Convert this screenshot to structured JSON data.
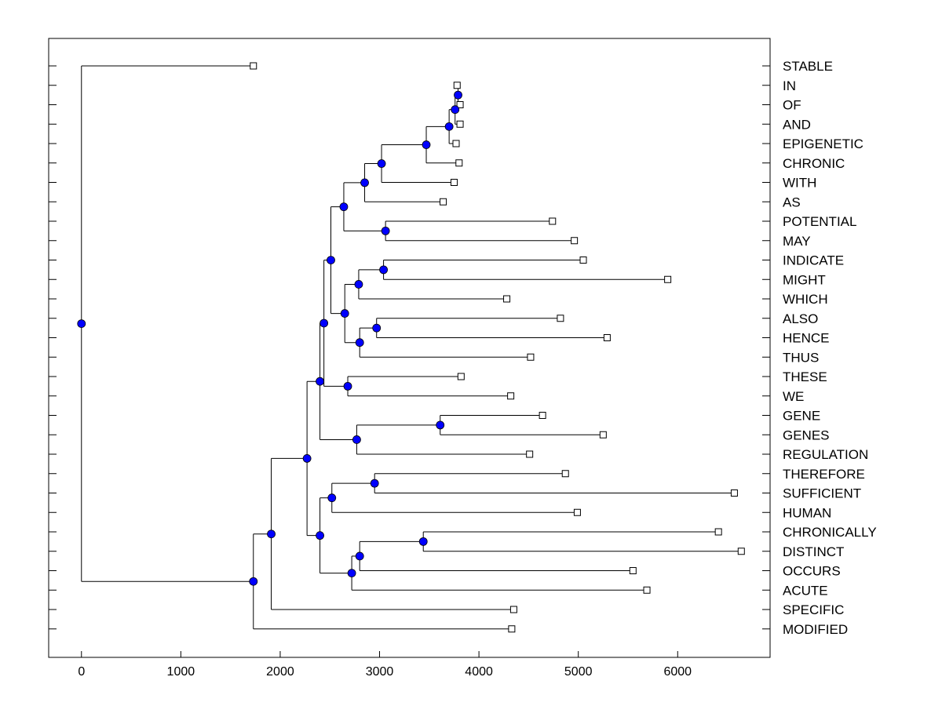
{
  "chart_data": {
    "type": "dendrogram",
    "title": "",
    "xlabel": "",
    "ylabel": "",
    "xlim": [
      -330,
      6930
    ],
    "xticks": [
      0,
      1000,
      2000,
      3000,
      4000,
      5000,
      6000
    ],
    "colors": {
      "node": "#0000ff",
      "line": "#000000",
      "leaf": "#ffffff"
    },
    "leaves": [
      {
        "label": "STABLE",
        "x": 1730
      },
      {
        "label": "IN",
        "x": 3780
      },
      {
        "label": "OF",
        "x": 3810
      },
      {
        "label": "AND",
        "x": 3810
      },
      {
        "label": "EPIGENETIC",
        "x": 3770
      },
      {
        "label": "CHRONIC",
        "x": 3800
      },
      {
        "label": "WITH",
        "x": 3750
      },
      {
        "label": "AS",
        "x": 3640
      },
      {
        "label": "POTENTIAL",
        "x": 4740
      },
      {
        "label": "MAY",
        "x": 4960
      },
      {
        "label": "INDICATE",
        "x": 5050
      },
      {
        "label": "MIGHT",
        "x": 5900
      },
      {
        "label": "WHICH",
        "x": 4280
      },
      {
        "label": "ALSO",
        "x": 4820
      },
      {
        "label": "HENCE",
        "x": 5290
      },
      {
        "label": "THUS",
        "x": 4520
      },
      {
        "label": "THESE",
        "x": 3820
      },
      {
        "label": "WE",
        "x": 4320
      },
      {
        "label": "GENE",
        "x": 4640
      },
      {
        "label": "GENES",
        "x": 5250
      },
      {
        "label": "REGULATION",
        "x": 4510
      },
      {
        "label": "THEREFORE",
        "x": 4870
      },
      {
        "label": "SUFFICIENT",
        "x": 6570
      },
      {
        "label": "HUMAN",
        "x": 4990
      },
      {
        "label": "CHRONICALLY",
        "x": 6410
      },
      {
        "label": "DISTINCT",
        "x": 6640
      },
      {
        "label": "OCCURS",
        "x": 5550
      },
      {
        "label": "ACUTE",
        "x": 5690
      },
      {
        "label": "SPECIFIC",
        "x": 4350
      },
      {
        "label": "MODIFIED",
        "x": 4330
      }
    ],
    "merges": [
      {
        "id": "a",
        "x": 3790,
        "children": [
          "IN",
          "OF"
        ]
      },
      {
        "id": "b",
        "x": 3760,
        "children": [
          "a",
          "AND"
        ]
      },
      {
        "id": "c",
        "x": 3700,
        "children": [
          "b",
          "EPIGENETIC"
        ]
      },
      {
        "id": "d",
        "x": 3470,
        "children": [
          "c",
          "CHRONIC"
        ]
      },
      {
        "id": "e",
        "x": 3020,
        "children": [
          "d",
          "WITH"
        ]
      },
      {
        "id": "f",
        "x": 2850,
        "children": [
          "e",
          "AS"
        ]
      },
      {
        "id": "g",
        "x": 3060,
        "children": [
          "POTENTIAL",
          "MAY"
        ]
      },
      {
        "id": "h",
        "x": 2640,
        "children": [
          "f",
          "g"
        ]
      },
      {
        "id": "i",
        "x": 3040,
        "children": [
          "INDICATE",
          "MIGHT"
        ]
      },
      {
        "id": "j",
        "x": 2790,
        "children": [
          "i",
          "WHICH"
        ]
      },
      {
        "id": "k",
        "x": 2970,
        "children": [
          "ALSO",
          "HENCE"
        ]
      },
      {
        "id": "l",
        "x": 2800,
        "children": [
          "k",
          "THUS"
        ]
      },
      {
        "id": "m",
        "x": 2650,
        "children": [
          "j",
          "l"
        ]
      },
      {
        "id": "n",
        "x": 2510,
        "children": [
          "h",
          "m"
        ]
      },
      {
        "id": "o",
        "x": 2680,
        "children": [
          "THESE",
          "WE"
        ]
      },
      {
        "id": "p",
        "x": 2440,
        "children": [
          "n",
          "o"
        ]
      },
      {
        "id": "q",
        "x": 3610,
        "children": [
          "GENE",
          "GENES"
        ]
      },
      {
        "id": "r",
        "x": 2770,
        "children": [
          "q",
          "REGULATION"
        ]
      },
      {
        "id": "s",
        "x": 2400,
        "children": [
          "p",
          "r"
        ]
      },
      {
        "id": "t",
        "x": 2950,
        "children": [
          "THEREFORE",
          "SUFFICIENT"
        ]
      },
      {
        "id": "u",
        "x": 2520,
        "children": [
          "t",
          "HUMAN"
        ]
      },
      {
        "id": "v",
        "x": 3440,
        "children": [
          "CHRONICALLY",
          "DISTINCT"
        ]
      },
      {
        "id": "w",
        "x": 2800,
        "children": [
          "v",
          "OCCURS"
        ]
      },
      {
        "id": "x",
        "x": 2720,
        "children": [
          "w",
          "ACUTE"
        ]
      },
      {
        "id": "y",
        "x": 2400,
        "children": [
          "u",
          "x"
        ]
      },
      {
        "id": "z",
        "x": 2270,
        "children": [
          "s",
          "y"
        ]
      },
      {
        "id": "aa",
        "x": 1910,
        "children": [
          "z",
          "SPECIFIC"
        ]
      },
      {
        "id": "ab",
        "x": 1730,
        "children": [
          "aa",
          "MODIFIED"
        ]
      },
      {
        "id": "root",
        "x": 0,
        "children": [
          "STABLE",
          "ab"
        ]
      }
    ]
  }
}
